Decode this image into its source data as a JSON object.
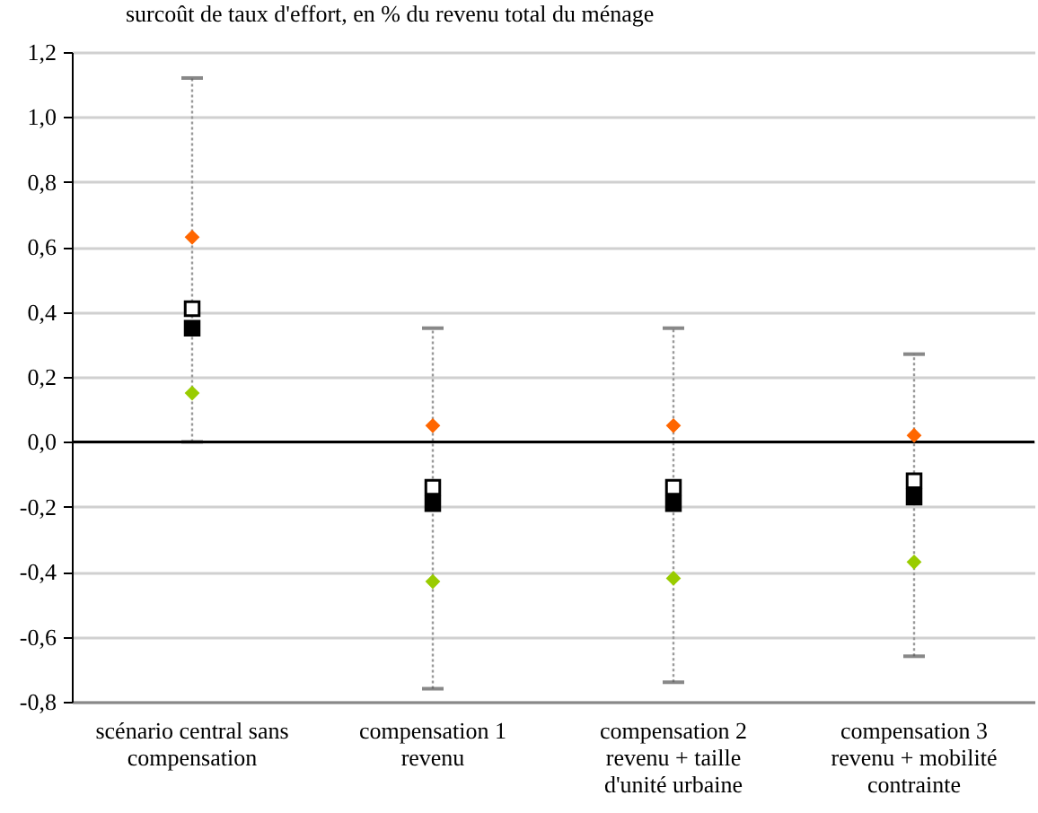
{
  "chart_data": {
    "type": "scatter",
    "title": "surcoût de taux d'effort, en % du revenu total du ménage",
    "categories": [
      "scénario central sans\ncompensation",
      "compensation 1\nrevenu",
      "compensation 2\nrevenu + taille\nd'unité urbaine",
      "compensation 3\nrevenu + mobilité\ncontrainte"
    ],
    "series": [
      {
        "color": "#ff6600",
        "marker": "diamond",
        "values": [
          0.63,
          0.05,
          0.05,
          0.02
        ]
      },
      {
        "color": "#ffffff",
        "marker": "square",
        "values": [
          0.41,
          -0.14,
          -0.14,
          -0.12
        ]
      },
      {
        "color": "#000000",
        "marker": "square",
        "values": [
          0.35,
          -0.19,
          -0.19,
          -0.17
        ],
        "errors": [
          [
            0.0,
            1.12
          ],
          [
            -0.76,
            0.35
          ],
          [
            -0.74,
            0.35
          ],
          [
            -0.66,
            0.27
          ]
        ]
      },
      {
        "color": "#99cc00",
        "marker": "diamond",
        "values": [
          0.15,
          -0.43,
          -0.42,
          -0.37
        ]
      }
    ],
    "line_style": "dotted",
    "ylim": [
      -0.8,
      1.2
    ],
    "yticks": [
      {
        "value": -0.8,
        "label": "-0,8"
      },
      {
        "value": -0.6,
        "label": "-0,6"
      },
      {
        "value": -0.4,
        "label": "-0,4"
      },
      {
        "value": -0.2,
        "label": "-0,2"
      },
      {
        "value": 0,
        "label": "0,0"
      },
      {
        "value": 0.2,
        "label": "0,2"
      },
      {
        "value": 0.4,
        "label": "0,4"
      },
      {
        "value": 0.6,
        "label": "0,6"
      },
      {
        "value": 0.8,
        "label": "0,8"
      },
      {
        "value": 1.0,
        "label": "1,0"
      },
      {
        "value": 1.2,
        "label": "1,2"
      }
    ],
    "grid": "y",
    "ref_lines": [
      {
        "axis": "y",
        "value": 0,
        "color": "#000000"
      }
    ]
  }
}
